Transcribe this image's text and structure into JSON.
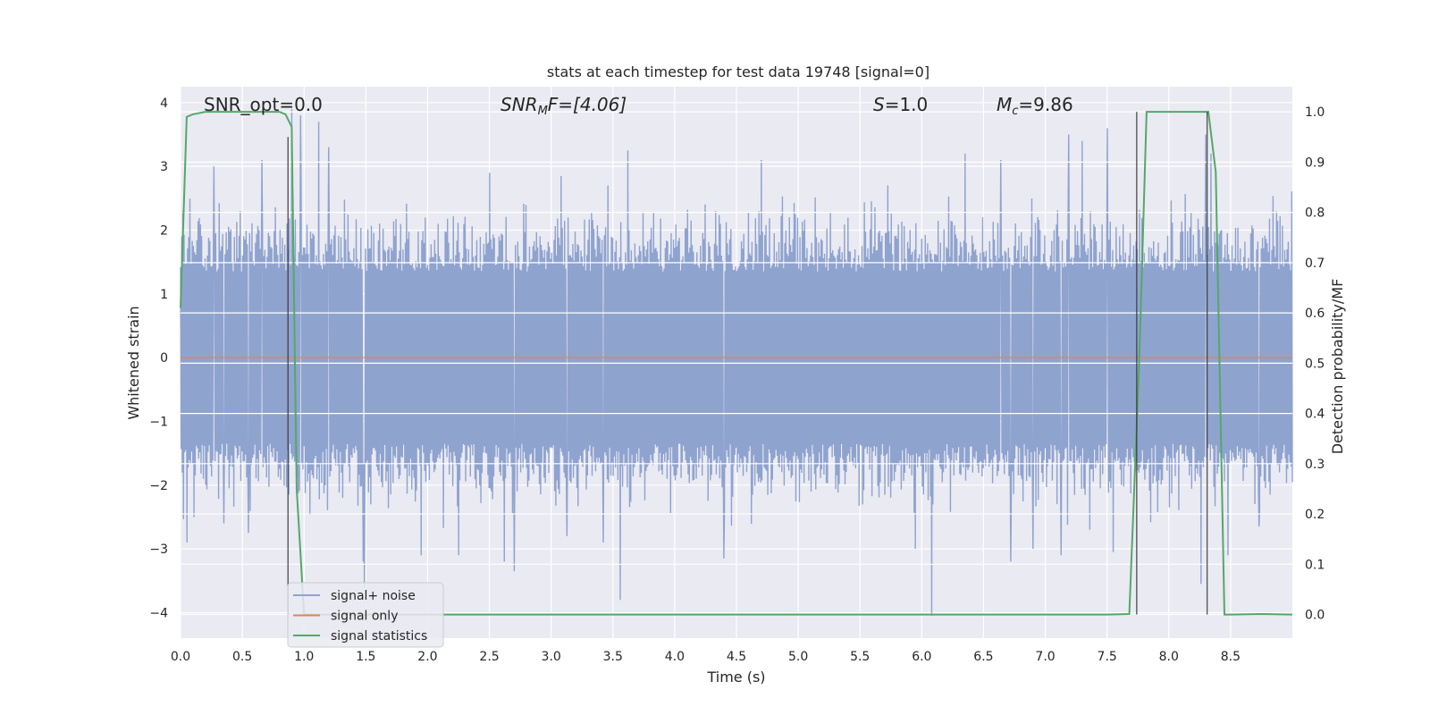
{
  "chart_data": {
    "type": "line",
    "title": "stats at each timestep for test data 19748 [signal=0]",
    "xlabel": "Time (s)",
    "ylabel": "Whitened strain",
    "ylabel_right": "Detection probability/MF",
    "xlim": [
      0.0,
      9.0
    ],
    "ylim": [
      -4.4,
      4.25
    ],
    "ylim_right": [
      -0.047,
      1.05
    ],
    "x_ticks": [
      "0.0",
      "0.5",
      "1.0",
      "1.5",
      "2.0",
      "2.5",
      "3.0",
      "3.5",
      "4.0",
      "4.5",
      "5.0",
      "5.5",
      "6.0",
      "6.5",
      "7.0",
      "7.5",
      "8.0",
      "8.5"
    ],
    "y_ticks": [
      "4",
      "3",
      "2",
      "1",
      "0",
      "−1",
      "−2",
      "−3",
      "−4"
    ],
    "y_ticks_right": [
      "1.0",
      "0.9",
      "0.8",
      "0.7",
      "0.6",
      "0.5",
      "0.4",
      "0.3",
      "0.2",
      "0.1",
      "0.0"
    ],
    "grid": true,
    "annotations": {
      "snr_opt": "SNR_opt=0.0",
      "snr_mf_main": "SNR",
      "snr_mf_sub": "M",
      "snr_mf_rest": "F=[4.06]",
      "s_main": "S",
      "s_rest": "=1.0",
      "mc_main": "M",
      "mc_sub": "c",
      "mc_rest": "=9.86"
    },
    "legend": {
      "position": "lower-left",
      "entries": [
        {
          "label": "signal+ noise",
          "color": "#8fa3cf"
        },
        {
          "label": "signal only",
          "color": "#dd8452"
        },
        {
          "label": "signal statistics",
          "color": "#55a868"
        }
      ]
    },
    "series": [
      {
        "name": "signal+ noise",
        "color": "#8fa3cf",
        "note": "dense whitened noise, amplitude about 2 to 2.5 with spikes",
        "spikes": [
          [
            0.02,
            2.3
          ],
          [
            0.27,
            3.0
          ],
          [
            0.66,
            3.1
          ],
          [
            0.9,
            3.9
          ],
          [
            0.97,
            3.8
          ],
          [
            1.12,
            3.7
          ],
          [
            1.2,
            3.3
          ],
          [
            2.5,
            2.9
          ],
          [
            3.08,
            2.85
          ],
          [
            3.62,
            3.25
          ],
          [
            4.7,
            3.1
          ],
          [
            6.35,
            3.2
          ],
          [
            6.64,
            3.1
          ],
          [
            7.19,
            3.5
          ],
          [
            7.3,
            3.4
          ],
          [
            7.5,
            3.6
          ],
          [
            8.3,
            3.5
          ],
          [
            8.34,
            3.2
          ],
          [
            0.05,
            -2.9
          ],
          [
            0.35,
            -2.6
          ],
          [
            0.55,
            -2.75
          ],
          [
            1.48,
            -3.2
          ],
          [
            1.49,
            -3.6
          ],
          [
            1.95,
            -3.1
          ],
          [
            2.25,
            -3.1
          ],
          [
            2.62,
            -3.2
          ],
          [
            2.7,
            -3.35
          ],
          [
            3.13,
            -2.8
          ],
          [
            3.42,
            -2.9
          ],
          [
            3.56,
            -3.8
          ],
          [
            4.4,
            -3.15
          ],
          [
            5.95,
            -3.0
          ],
          [
            6.08,
            -4.05
          ],
          [
            6.72,
            -3.2
          ],
          [
            6.9,
            -3.0
          ],
          [
            7.13,
            -3.1
          ],
          [
            7.55,
            -3.05
          ],
          [
            8.26,
            -3.55
          ],
          [
            8.48,
            -3.1
          ],
          [
            8.73,
            -2.65
          ]
        ]
      },
      {
        "name": "signal only",
        "color": "#dd8452",
        "x": [
          0.0,
          9.0
        ],
        "y": [
          0.0,
          0.0
        ]
      },
      {
        "name": "signal statistics",
        "color": "#55a868",
        "axis": "right",
        "x": [
          0.0,
          0.05,
          0.1,
          0.2,
          0.3,
          0.4,
          0.5,
          0.6,
          0.7,
          0.8,
          0.85,
          0.9,
          0.94,
          1.0,
          1.5,
          2.0,
          3.0,
          4.0,
          5.0,
          6.0,
          7.0,
          7.5,
          7.68,
          7.76,
          7.82,
          8.0,
          8.2,
          8.32,
          8.38,
          8.45,
          8.5,
          8.75,
          9.0
        ],
        "y": [
          0.61,
          0.99,
          0.995,
          1.0,
          1.0,
          1.0,
          1.0,
          1.0,
          1.0,
          1.0,
          0.995,
          0.97,
          0.25,
          0.0,
          0.0,
          0.0,
          0.0,
          0.0,
          0.0,
          0.0,
          0.0,
          0.0,
          0.001,
          0.5,
          1.0,
          1.0,
          1.0,
          1.0,
          0.88,
          0.0,
          0.0,
          0.001,
          0.0
        ]
      },
      {
        "name": "threshold markers",
        "color": "#333333",
        "axis": "right",
        "vertical_lines": [
          {
            "x": 0.87,
            "y0": 0.95,
            "y1": 0.0
          },
          {
            "x": 7.74,
            "y0": 0.0,
            "y1": 1.0
          },
          {
            "x": 8.31,
            "y0": 1.0,
            "y1": 0.0
          }
        ]
      }
    ]
  }
}
